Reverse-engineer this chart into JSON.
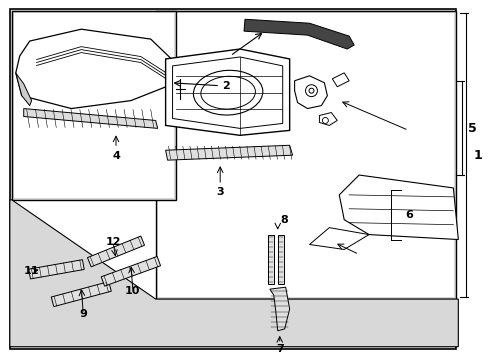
{
  "bg_color": "#e8e8e8",
  "white_bg": "#ffffff",
  "line_color": "#000000",
  "part_fill": "#ffffff",
  "gray_bg": "#d8d8d8",
  "dark_fill": "#555555"
}
